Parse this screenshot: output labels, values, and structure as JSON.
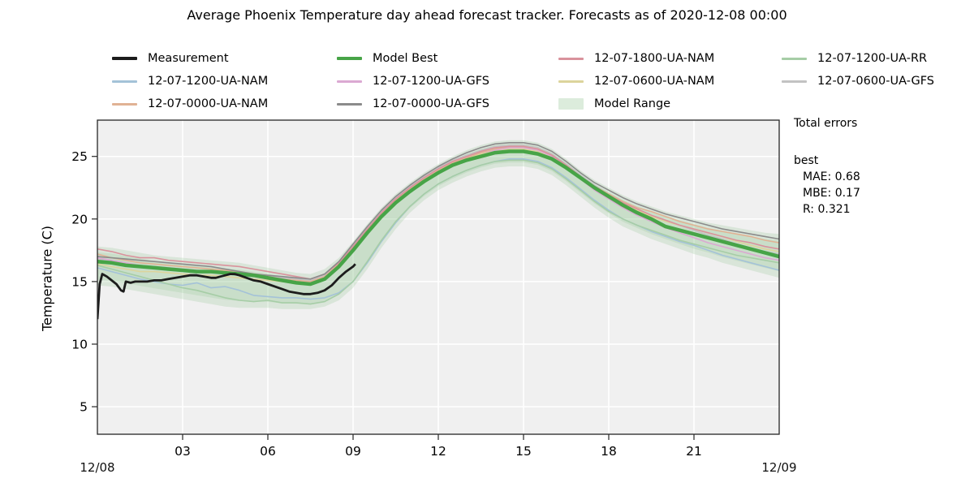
{
  "chart_data": {
    "type": "line",
    "title": "Average Phoenix Temperature day ahead forecast tracker. Forecasts as of 2020-12-08 00:00",
    "ylabel": "Temperature (C)",
    "xlim": [
      0,
      24
    ],
    "ylim": [
      2.8,
      27.9
    ],
    "grid": true,
    "plot_background": "#f0f0f0",
    "grid_color": "#ffffff",
    "x_ticks": {
      "values": [
        3,
        6,
        9,
        12,
        15,
        18,
        21
      ],
      "labels": [
        "03",
        "06",
        "09",
        "12",
        "15",
        "18",
        "21"
      ]
    },
    "y_ticks": {
      "values": [
        5,
        10,
        15,
        20,
        25
      ],
      "labels": [
        "5",
        "10",
        "15",
        "20",
        "25"
      ]
    },
    "x_corner_labels": {
      "left": "12/08",
      "right": "12/09"
    },
    "legend": {
      "position": "top",
      "items": [
        {
          "label": "Measurement",
          "color": "#1c1c1c",
          "type": "line-thick"
        },
        {
          "label": "12-07-1200-UA-NAM",
          "color": "#a4c2d8",
          "type": "line"
        },
        {
          "label": "12-07-0000-UA-NAM",
          "color": "#e0b294",
          "type": "line"
        },
        {
          "label": "Model Best",
          "color": "#47a447",
          "type": "line-thick"
        },
        {
          "label": "12-07-1200-UA-GFS",
          "color": "#dba9d2",
          "type": "line"
        },
        {
          "label": "12-07-0000-UA-GFS",
          "color": "#8b8b8b",
          "type": "line"
        },
        {
          "label": "12-07-1800-UA-NAM",
          "color": "#d9929c",
          "type": "line"
        },
        {
          "label": "12-07-0600-UA-NAM",
          "color": "#dcd49c",
          "type": "line"
        },
        {
          "label": "Model Range",
          "color": "#dcecdc",
          "type": "patch"
        },
        {
          "label": "12-07-1200-UA-RR",
          "color": "#a6cda6",
          "type": "line"
        },
        {
          "label": "12-07-0600-UA-GFS",
          "color": "#c2c2c2",
          "type": "line"
        }
      ]
    },
    "x": [
      0,
      0.5,
      1,
      1.5,
      2,
      2.5,
      3,
      3.5,
      4,
      4.5,
      5,
      5.5,
      6,
      6.5,
      7,
      7.5,
      8,
      8.5,
      9,
      9.5,
      10,
      10.5,
      11,
      11.5,
      12,
      12.5,
      13,
      13.5,
      14,
      14.5,
      15,
      15.5,
      16,
      16.5,
      17,
      17.5,
      18,
      18.5,
      19,
      19.5,
      20,
      20.5,
      21,
      21.5,
      22,
      22.5,
      23,
      23.5,
      24
    ],
    "band": {
      "label": "Model Range",
      "color": "#7dbb7d",
      "opacity": 0.2,
      "top": [
        17.8,
        17.7,
        17.5,
        17.3,
        17.1,
        17.0,
        16.9,
        16.8,
        16.7,
        16.6,
        16.5,
        16.3,
        16.1,
        15.9,
        15.7,
        15.6,
        16.0,
        16.9,
        18.2,
        19.6,
        20.9,
        22.0,
        22.9,
        23.7,
        24.4,
        25.0,
        25.5,
        25.9,
        26.2,
        26.3,
        26.3,
        26.1,
        25.6,
        24.8,
        23.9,
        23.1,
        22.5,
        21.9,
        21.4,
        21.0,
        20.6,
        20.3,
        20.0,
        19.7,
        19.5,
        19.3,
        19.1,
        18.9,
        18.8
      ],
      "bottom": [
        14.7,
        14.6,
        14.4,
        14.2,
        14.0,
        13.8,
        13.6,
        13.4,
        13.2,
        13.0,
        12.9,
        12.9,
        12.9,
        12.8,
        12.8,
        12.8,
        13.0,
        13.5,
        14.5,
        16.0,
        17.7,
        19.2,
        20.5,
        21.5,
        22.3,
        22.9,
        23.4,
        23.8,
        24.1,
        24.2,
        24.2,
        24.0,
        23.5,
        22.7,
        21.8,
        20.9,
        20.1,
        19.4,
        18.9,
        18.4,
        18.0,
        17.6,
        17.2,
        16.9,
        16.5,
        16.2,
        15.9,
        15.6,
        15.3
      ]
    },
    "series": [
      {
        "name": "12-07-1200-UA-NAM",
        "color": "#a4c2d8",
        "width": 1.6,
        "y": [
          16.1,
          15.8,
          15.5,
          15.2,
          15.0,
          14.8,
          14.7,
          14.9,
          14.5,
          14.6,
          14.3,
          13.9,
          13.8,
          13.7,
          13.7,
          13.6,
          13.7,
          14.1,
          15.0,
          16.5,
          18.2,
          19.7,
          21.0,
          22.0,
          22.8,
          23.4,
          23.9,
          24.3,
          24.6,
          24.8,
          24.8,
          24.6,
          24.1,
          23.3,
          22.4,
          21.5,
          20.7,
          20.0,
          19.5,
          19.0,
          18.6,
          18.2,
          17.9,
          17.5,
          17.1,
          16.8,
          16.5,
          16.2,
          15.9
        ]
      },
      {
        "name": "12-07-1200-UA-RR",
        "color": "#a6cda6",
        "width": 1.6,
        "y": [
          16.3,
          16.0,
          15.7,
          15.4,
          15.1,
          14.8,
          14.5,
          14.3,
          14.0,
          13.7,
          13.5,
          13.4,
          13.5,
          13.3,
          13.3,
          13.2,
          13.4,
          14.0,
          15.0,
          16.6,
          18.3,
          19.8,
          21.0,
          22.0,
          22.8,
          23.4,
          23.9,
          24.3,
          24.6,
          24.7,
          24.7,
          24.5,
          24.0,
          23.2,
          22.3,
          21.4,
          20.6,
          20.0,
          19.5,
          19.1,
          18.7,
          18.3,
          18.0,
          17.7,
          17.4,
          17.1,
          16.9,
          16.7,
          16.5
        ]
      },
      {
        "name": "12-07-0600-UA-GFS",
        "color": "#c2c2c2",
        "width": 1.6,
        "y": [
          16.8,
          16.6,
          16.4,
          16.3,
          16.2,
          16.1,
          16.0,
          15.9,
          15.8,
          15.7,
          15.6,
          15.5,
          15.4,
          15.3,
          15.2,
          15.1,
          15.5,
          16.5,
          17.9,
          19.3,
          20.6,
          21.7,
          22.6,
          23.4,
          24.1,
          24.7,
          25.1,
          25.5,
          25.8,
          25.9,
          25.9,
          25.7,
          25.2,
          24.4,
          23.5,
          22.7,
          22.0,
          21.4,
          20.8,
          20.3,
          19.9,
          19.5,
          19.1,
          18.7,
          18.4,
          18.0,
          17.7,
          17.4,
          17.2
        ]
      },
      {
        "name": "12-07-0600-UA-NAM",
        "color": "#dcd49c",
        "width": 1.6,
        "y": [
          16.4,
          16.2,
          16.0,
          15.8,
          15.8,
          15.7,
          15.6,
          15.5,
          15.5,
          15.4,
          15.3,
          15.2,
          15.1,
          15.0,
          14.9,
          14.9,
          15.3,
          16.3,
          17.6,
          19.0,
          20.3,
          21.4,
          22.3,
          23.1,
          23.8,
          24.4,
          24.8,
          25.2,
          25.5,
          25.6,
          25.6,
          25.4,
          24.9,
          24.1,
          23.2,
          22.4,
          21.8,
          21.2,
          20.7,
          20.2,
          19.8,
          19.5,
          19.2,
          18.9,
          18.6,
          18.2,
          17.9,
          17.6,
          17.4
        ]
      },
      {
        "name": "12-07-1200-UA-GFS",
        "color": "#dba9d2",
        "width": 1.6,
        "y": [
          16.9,
          16.7,
          16.5,
          16.3,
          16.2,
          16.1,
          16.0,
          15.9,
          15.8,
          15.7,
          15.6,
          15.4,
          15.2,
          15.1,
          15.0,
          15.0,
          15.4,
          16.4,
          17.8,
          19.2,
          20.5,
          21.6,
          22.5,
          23.3,
          24.0,
          24.5,
          25.0,
          25.3,
          25.5,
          25.7,
          25.7,
          25.5,
          25.0,
          24.2,
          23.2,
          22.3,
          21.6,
          20.9,
          20.3,
          19.8,
          19.3,
          18.9,
          18.5,
          18.1,
          17.8,
          17.5,
          17.2,
          16.9,
          16.7
        ]
      },
      {
        "name": "12-07-0000-UA-NAM",
        "color": "#e0b294",
        "width": 1.6,
        "y": [
          17.2,
          16.9,
          16.7,
          16.5,
          16.4,
          16.3,
          16.2,
          16.1,
          16.0,
          15.9,
          15.8,
          15.6,
          15.4,
          15.2,
          15.1,
          15.0,
          15.4,
          16.4,
          17.7,
          19.1,
          20.4,
          21.5,
          22.4,
          23.2,
          23.9,
          24.5,
          24.9,
          25.3,
          25.6,
          25.8,
          25.8,
          25.6,
          25.1,
          24.3,
          23.4,
          22.6,
          22.0,
          21.4,
          20.9,
          20.6,
          20.2,
          19.8,
          19.5,
          19.2,
          19.0,
          18.8,
          18.6,
          18.3,
          18.1
        ]
      },
      {
        "name": "12-07-1800-UA-NAM",
        "color": "#d9929c",
        "width": 1.6,
        "y": [
          17.6,
          17.4,
          17.1,
          16.9,
          16.9,
          16.7,
          16.6,
          16.5,
          16.4,
          16.3,
          16.2,
          16.0,
          15.8,
          15.6,
          15.4,
          15.2,
          15.6,
          16.5,
          17.8,
          19.2,
          20.5,
          21.6,
          22.5,
          23.3,
          24.0,
          24.6,
          25.0,
          25.4,
          25.7,
          25.8,
          25.8,
          25.6,
          25.1,
          24.3,
          23.4,
          22.6,
          21.9,
          21.3,
          20.8,
          20.3,
          19.9,
          19.5,
          19.2,
          18.9,
          18.6,
          18.3,
          18.1,
          17.8,
          17.6
        ]
      },
      {
        "name": "12-07-0000-UA-GFS",
        "color": "#8b8b8b",
        "width": 1.6,
        "y": [
          17.0,
          16.9,
          16.8,
          16.7,
          16.6,
          16.5,
          16.4,
          16.3,
          16.2,
          16.0,
          15.8,
          15.6,
          15.5,
          15.4,
          15.3,
          15.2,
          15.6,
          16.6,
          18.0,
          19.4,
          20.7,
          21.8,
          22.7,
          23.5,
          24.2,
          24.8,
          25.3,
          25.7,
          26.0,
          26.1,
          26.1,
          25.9,
          25.4,
          24.6,
          23.7,
          22.9,
          22.3,
          21.7,
          21.2,
          20.8,
          20.4,
          20.1,
          19.8,
          19.5,
          19.2,
          19.0,
          18.8,
          18.6,
          18.4
        ]
      },
      {
        "name": "Model Best",
        "color": "#47a447",
        "width": 4.5,
        "y": [
          16.6,
          16.5,
          16.3,
          16.2,
          16.1,
          16.0,
          15.9,
          15.8,
          15.8,
          15.7,
          15.6,
          15.5,
          15.3,
          15.1,
          14.9,
          14.8,
          15.2,
          16.2,
          17.5,
          18.9,
          20.2,
          21.3,
          22.2,
          23.0,
          23.7,
          24.3,
          24.7,
          25.0,
          25.3,
          25.4,
          25.4,
          25.2,
          24.8,
          24.1,
          23.3,
          22.5,
          21.8,
          21.1,
          20.5,
          20.0,
          19.4,
          19.1,
          18.8,
          18.5,
          18.2,
          17.9,
          17.6,
          17.3,
          17.0
        ]
      }
    ],
    "measurement": {
      "name": "Measurement",
      "color": "#1c1c1c",
      "width": 2.8,
      "x": [
        0,
        0.08,
        0.17,
        0.33,
        0.5,
        0.67,
        0.83,
        0.92,
        1.0,
        1.17,
        1.33,
        1.5,
        1.75,
        2.0,
        2.25,
        2.5,
        2.75,
        3.0,
        3.25,
        3.5,
        3.75,
        4.0,
        4.17,
        4.33,
        4.5,
        4.67,
        4.83,
        5.0,
        5.25,
        5.5,
        5.75,
        6.0,
        6.25,
        6.5,
        6.75,
        7.0,
        7.25,
        7.5,
        7.75,
        8.0,
        8.25,
        8.5,
        8.75,
        9.0,
        9.08
      ],
      "y": [
        12.0,
        14.8,
        15.6,
        15.4,
        15.1,
        14.8,
        14.3,
        14.2,
        15.0,
        14.9,
        15.0,
        15.0,
        15.0,
        15.1,
        15.1,
        15.2,
        15.3,
        15.4,
        15.5,
        15.5,
        15.4,
        15.3,
        15.3,
        15.4,
        15.5,
        15.6,
        15.6,
        15.5,
        15.3,
        15.1,
        15.0,
        14.8,
        14.6,
        14.4,
        14.2,
        14.1,
        14.0,
        14.0,
        14.1,
        14.3,
        14.7,
        15.3,
        15.8,
        16.2,
        16.4
      ]
    },
    "errors_panel": {
      "title": "Total errors",
      "group": "best",
      "lines": [
        "MAE: 0.68",
        "MBE: 0.17",
        "R: 0.321"
      ]
    }
  }
}
